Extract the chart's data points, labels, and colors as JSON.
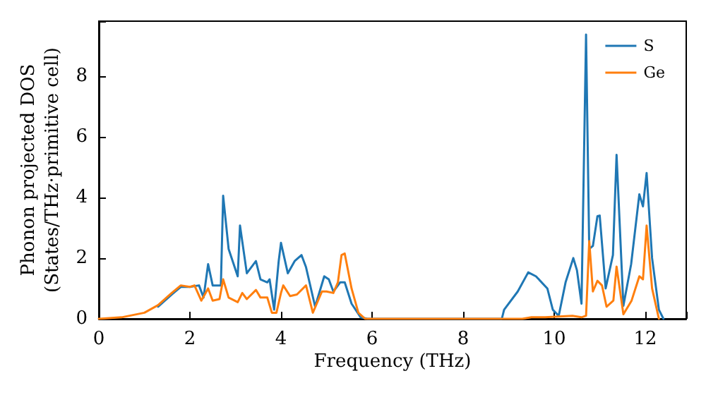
{
  "chart_data": {
    "type": "line",
    "xlabel": "Frequency (THz)",
    "ylabel": "Phonon projected DOS\n(States/THz·primitive cell)",
    "xlim": [
      0,
      12.9
    ],
    "ylim": [
      0,
      9.8
    ],
    "xticks": [
      0,
      2,
      4,
      6,
      8,
      10,
      12
    ],
    "yticks": [
      0,
      2,
      4,
      6,
      8
    ],
    "grid": false,
    "legend": "top right",
    "marker": "none",
    "line_style": "solid",
    "series": [
      {
        "name": "S",
        "color": "#1f77b4",
        "x": [
          1.3,
          1.6,
          1.8,
          2.0,
          2.2,
          2.3,
          2.4,
          2.5,
          2.68,
          2.73,
          2.85,
          3.05,
          3.1,
          3.25,
          3.45,
          3.55,
          3.7,
          3.75,
          3.85,
          3.95,
          4.0,
          4.15,
          4.3,
          4.45,
          4.55,
          4.75,
          4.95,
          5.05,
          5.15,
          5.3,
          5.4,
          5.55,
          5.75,
          5.9,
          8.85,
          8.9,
          9.2,
          9.43,
          9.6,
          9.85,
          9.97,
          10.1,
          10.25,
          10.42,
          10.5,
          10.6,
          10.7,
          10.77,
          10.85,
          10.95,
          11.0,
          11.13,
          11.29,
          11.37,
          11.52,
          11.69,
          11.87,
          11.95,
          12.03,
          12.15,
          12.3,
          12.4
        ],
        "values": [
          0.4,
          0.8,
          1.05,
          1.05,
          1.1,
          0.7,
          1.8,
          1.1,
          1.1,
          4.05,
          2.3,
          1.4,
          3.07,
          1.5,
          1.9,
          1.3,
          1.2,
          1.3,
          0.3,
          1.9,
          2.5,
          1.5,
          1.9,
          2.1,
          1.7,
          0.4,
          1.4,
          1.3,
          0.9,
          1.2,
          1.2,
          0.5,
          0.05,
          0,
          0,
          0.3,
          0.9,
          1.53,
          1.4,
          1.0,
          0.3,
          0.1,
          1.2,
          2.0,
          1.6,
          0.5,
          9.36,
          2.3,
          2.4,
          3.38,
          3.4,
          1.0,
          2.1,
          5.4,
          0.43,
          1.8,
          4.1,
          3.7,
          4.8,
          2.0,
          0.3,
          0
        ]
      },
      {
        "name": "Ge",
        "color": "#ff7f0e",
        "x": [
          0,
          0.5,
          1.0,
          1.3,
          1.6,
          1.8,
          2.0,
          2.1,
          2.25,
          2.4,
          2.5,
          2.65,
          2.73,
          2.85,
          3.05,
          3.15,
          3.25,
          3.45,
          3.55,
          3.7,
          3.8,
          3.9,
          4.0,
          4.05,
          4.2,
          4.35,
          4.55,
          4.7,
          4.9,
          5.0,
          5.15,
          5.25,
          5.33,
          5.4,
          5.55,
          5.7,
          5.85,
          9.3,
          9.5,
          9.8,
          10.4,
          10.6,
          10.7,
          10.77,
          10.85,
          10.95,
          11.05,
          11.15,
          11.3,
          11.37,
          11.52,
          11.7,
          11.87,
          11.95,
          12.03,
          12.15,
          12.3
        ],
        "values": [
          0,
          0.05,
          0.2,
          0.45,
          0.85,
          1.1,
          1.05,
          1.1,
          0.6,
          1.0,
          0.6,
          0.65,
          1.3,
          0.7,
          0.55,
          0.85,
          0.65,
          0.95,
          0.7,
          0.7,
          0.2,
          0.2,
          0.85,
          1.1,
          0.75,
          0.8,
          1.1,
          0.2,
          0.9,
          0.9,
          0.85,
          1.2,
          2.1,
          2.15,
          1.0,
          0.2,
          0,
          0,
          0.05,
          0.05,
          0.1,
          0.05,
          0.1,
          2.56,
          0.9,
          1.25,
          1.1,
          0.4,
          0.6,
          1.72,
          0.15,
          0.6,
          1.4,
          1.3,
          3.07,
          1.0,
          0
        ]
      }
    ]
  }
}
